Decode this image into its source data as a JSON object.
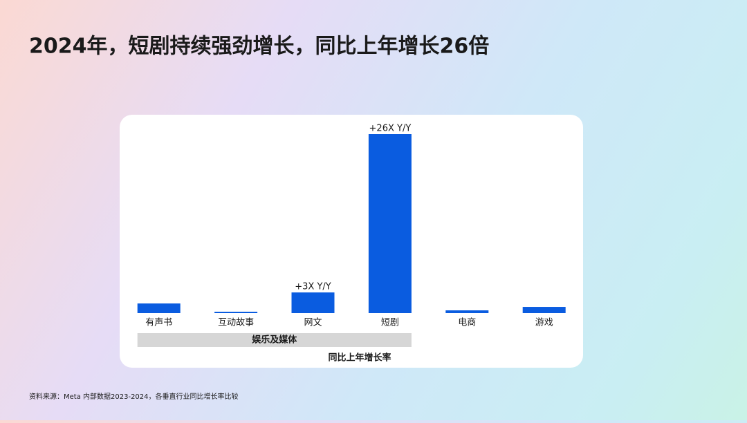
{
  "chart_data": {
    "type": "bar",
    "title": "2024年，短剧持续强劲增长，同比上年增长26倍",
    "categories": [
      "有声书",
      "互动故事",
      "网文",
      "短剧",
      "电商",
      "游戏"
    ],
    "values": [
      1.4,
      0.2,
      3,
      26,
      0.4,
      0.9
    ],
    "value_labels": [
      null,
      null,
      "+3X Y/Y",
      "+26X Y/Y",
      null,
      null
    ],
    "color": "#0a5ce0",
    "groups": [
      {
        "label": "娱乐及媒体",
        "categories": [
          "有声书",
          "互动故事",
          "网文",
          "短剧"
        ]
      }
    ],
    "x_label": "同比上年增长率",
    "source": "资料来源：Meta 内部数据2023-2024，各垂直行业同比增长率比较"
  }
}
